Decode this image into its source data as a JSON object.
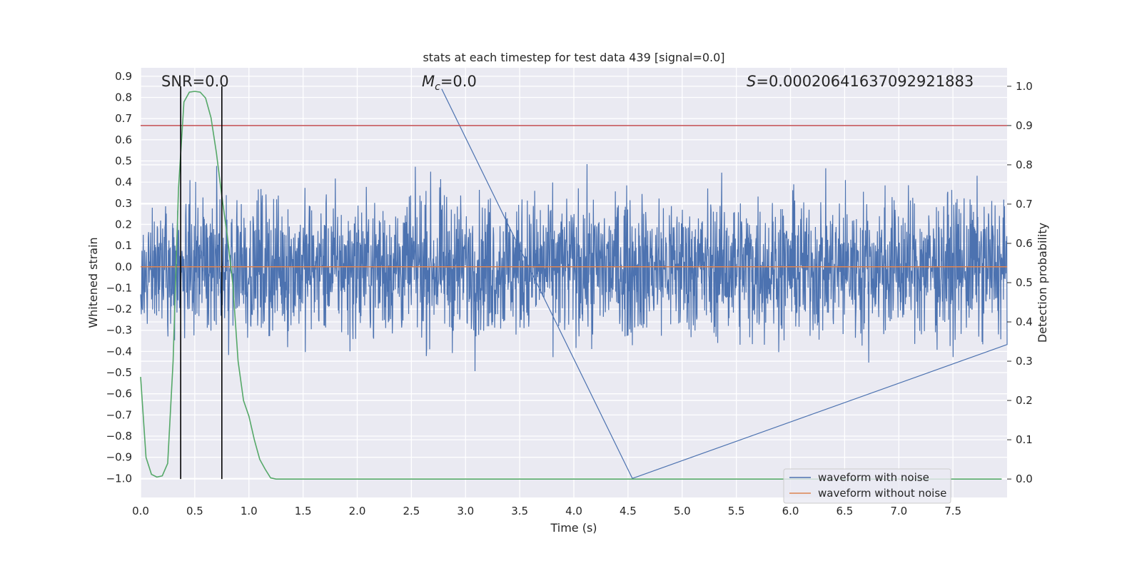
{
  "chart_data": {
    "type": "line",
    "title": "stats at each timestep for test data 439 [signal=0.0]",
    "xlabel": "Time (s)",
    "ylabel": "Whitened strain",
    "ylabel_right": "Detection probability",
    "xlim": [
      0.0,
      8.0
    ],
    "ylim": [
      -1.09,
      0.94
    ],
    "ylim_right": [
      -0.047,
      1.047
    ],
    "x_ticks": [
      "0.0",
      "0.5",
      "1.0",
      "1.5",
      "2.0",
      "2.5",
      "3.0",
      "3.5",
      "4.0",
      "4.5",
      "5.0",
      "5.5",
      "6.0",
      "6.5",
      "7.0",
      "7.5"
    ],
    "y_ticks": [
      "0.9",
      "0.8",
      "0.7",
      "0.6",
      "0.5",
      "0.4",
      "0.3",
      "0.2",
      "0.1",
      "0.0",
      "−0.1",
      "−0.2",
      "−0.3",
      "−0.4",
      "−0.5",
      "−0.6",
      "−0.7",
      "−0.8",
      "−0.9",
      "−1.0"
    ],
    "y_right_ticks": [
      "1.0",
      "0.9",
      "0.8",
      "0.7",
      "0.6",
      "0.5",
      "0.4",
      "0.3",
      "0.2",
      "0.1",
      "0.0"
    ],
    "annotations": {
      "snr": "SNR=0.0",
      "mc_symbol": "M",
      "mc_sub": "c",
      "mc_value": "=0.0",
      "s_symbol": "S",
      "s_value": "=0.00020641637092921883"
    },
    "threshold": 0.9,
    "vertical_lines_x": [
      0.37,
      0.75
    ],
    "series": [
      {
        "name": "waveform with noise",
        "color": "#4c72b0",
        "kind": "noise",
        "typical_abs": 0.3,
        "max": 0.84,
        "min": -1.0
      },
      {
        "name": "waveform without noise",
        "color": "#dd8452",
        "x": [
          0.0,
          8.0
        ],
        "values": [
          0.0,
          0.0
        ]
      },
      {
        "name": "detection probability",
        "color": "#55a868",
        "axis": "right",
        "x": [
          0.0,
          0.05,
          0.1,
          0.15,
          0.2,
          0.25,
          0.3,
          0.35,
          0.4,
          0.45,
          0.5,
          0.55,
          0.6,
          0.65,
          0.7,
          0.75,
          0.8,
          0.85,
          0.9,
          0.95,
          1.0,
          1.05,
          1.1,
          1.15,
          1.2,
          1.25,
          1.3,
          7.95
        ],
        "values": [
          0.26,
          0.055,
          0.012,
          0.005,
          0.008,
          0.04,
          0.3,
          0.74,
          0.96,
          0.985,
          0.987,
          0.985,
          0.97,
          0.92,
          0.83,
          0.72,
          0.62,
          0.5,
          0.3,
          0.2,
          0.16,
          0.1,
          0.05,
          0.025,
          0.003,
          0.0,
          0.0,
          0.0
        ]
      }
    ],
    "threshold_color": "#c44e52",
    "legend": {
      "position": "lower right",
      "entries": [
        "waveform with noise",
        "waveform without noise"
      ]
    }
  }
}
